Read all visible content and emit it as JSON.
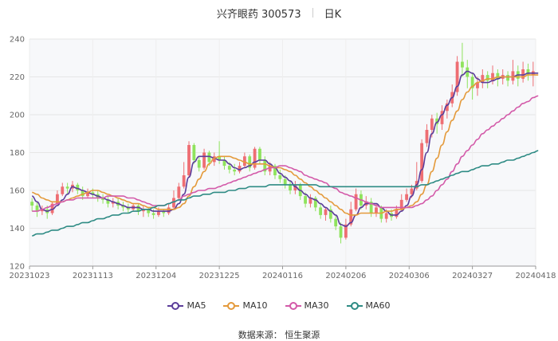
{
  "title": {
    "stock": "兴齐眼药 300573",
    "period": "日K"
  },
  "source": "数据来源：  恒生聚源",
  "colors": {
    "up": "#ee6e73",
    "down": "#8fe35d",
    "ma5": "#5b3d9a",
    "ma10": "#e49a3b",
    "ma30": "#d35aa9",
    "ma60": "#2e8b84"
  },
  "chart_data": {
    "type": "candlestick",
    "ylim": [
      120,
      240
    ],
    "yticks": [
      120,
      140,
      160,
      180,
      200,
      220,
      240
    ],
    "grid": true,
    "legend_position": "bottom",
    "x_labels": [
      "20231023",
      "20231113",
      "20231204",
      "20231225",
      "20240116",
      "20240206",
      "20240306",
      "20240327",
      "20240418"
    ],
    "series_names": [
      "MA5",
      "MA10",
      "MA30",
      "MA60"
    ],
    "ohlc": [
      [
        154,
        152,
        156,
        149
      ],
      [
        152,
        149,
        154,
        146
      ],
      [
        149,
        150,
        152,
        147
      ],
      [
        150,
        148,
        152,
        145
      ],
      [
        148,
        153,
        154,
        147
      ],
      [
        153,
        158,
        160,
        152
      ],
      [
        158,
        162,
        164,
        157
      ],
      [
        162,
        161,
        164,
        158
      ],
      [
        161,
        163,
        165,
        159
      ],
      [
        163,
        160,
        164,
        158
      ],
      [
        160,
        157,
        162,
        155
      ],
      [
        157,
        159,
        161,
        156
      ],
      [
        159,
        158,
        161,
        156
      ],
      [
        158,
        156,
        160,
        154
      ],
      [
        156,
        155,
        158,
        153
      ],
      [
        155,
        153,
        157,
        151
      ],
      [
        153,
        154,
        156,
        151
      ],
      [
        154,
        152,
        156,
        150
      ],
      [
        152,
        151,
        154,
        149
      ],
      [
        151,
        150,
        153,
        148
      ],
      [
        150,
        152,
        153,
        149
      ],
      [
        152,
        149,
        153,
        147
      ],
      [
        149,
        150,
        152,
        146
      ],
      [
        150,
        148,
        151,
        146
      ],
      [
        148,
        147,
        150,
        145
      ],
      [
        147,
        149,
        151,
        146
      ],
      [
        149,
        148,
        150,
        146
      ],
      [
        148,
        151,
        153,
        147
      ],
      [
        151,
        156,
        160,
        150
      ],
      [
        156,
        162,
        164,
        155
      ],
      [
        162,
        168,
        175,
        161
      ],
      [
        168,
        184,
        186,
        167
      ],
      [
        184,
        176,
        185,
        174
      ],
      [
        176,
        172,
        178,
        170
      ],
      [
        172,
        180,
        182,
        171
      ],
      [
        180,
        175,
        181,
        173
      ],
      [
        175,
        178,
        180,
        173
      ],
      [
        178,
        176,
        186,
        174
      ],
      [
        176,
        173,
        178,
        171
      ],
      [
        173,
        171,
        175,
        169
      ],
      [
        171,
        170,
        174,
        168
      ],
      [
        170,
        173,
        175,
        169
      ],
      [
        173,
        178,
        180,
        172
      ],
      [
        178,
        172,
        179,
        170
      ],
      [
        172,
        182,
        183,
        171
      ],
      [
        182,
        176,
        183,
        174
      ],
      [
        176,
        170,
        178,
        168
      ],
      [
        170,
        173,
        175,
        168
      ],
      [
        173,
        168,
        174,
        166
      ],
      [
        168,
        166,
        171,
        164
      ],
      [
        166,
        163,
        168,
        161
      ],
      [
        163,
        160,
        165,
        158
      ],
      [
        160,
        163,
        165,
        158
      ],
      [
        163,
        157,
        164,
        155
      ],
      [
        157,
        153,
        159,
        151
      ],
      [
        153,
        156,
        158,
        151
      ],
      [
        156,
        151,
        157,
        149
      ],
      [
        151,
        147,
        153,
        145
      ],
      [
        147,
        150,
        151,
        144
      ],
      [
        150,
        145,
        152,
        143
      ],
      [
        145,
        141,
        147,
        139
      ],
      [
        141,
        135,
        143,
        132
      ],
      [
        135,
        142,
        145,
        134
      ],
      [
        142,
        150,
        154,
        141
      ],
      [
        150,
        158,
        161,
        149
      ],
      [
        158,
        152,
        160,
        150
      ],
      [
        152,
        154,
        157,
        150
      ],
      [
        154,
        148,
        156,
        146
      ],
      [
        148,
        151,
        153,
        146
      ],
      [
        151,
        145,
        152,
        143
      ],
      [
        145,
        148,
        150,
        143
      ],
      [
        148,
        146,
        150,
        144
      ],
      [
        146,
        150,
        152,
        145
      ],
      [
        150,
        155,
        158,
        149
      ],
      [
        155,
        158,
        161,
        154
      ],
      [
        158,
        161,
        163,
        156
      ],
      [
        161,
        165,
        175,
        160
      ],
      [
        165,
        185,
        187,
        164
      ],
      [
        185,
        192,
        195,
        183
      ],
      [
        192,
        198,
        200,
        188
      ],
      [
        198,
        195,
        201,
        190
      ],
      [
        195,
        202,
        205,
        192
      ],
      [
        202,
        206,
        208,
        198
      ],
      [
        206,
        212,
        216,
        204
      ],
      [
        212,
        228,
        231,
        210
      ],
      [
        228,
        225,
        238,
        220
      ],
      [
        225,
        220,
        229,
        214
      ],
      [
        220,
        214,
        222,
        208
      ],
      [
        214,
        217,
        220,
        210
      ],
      [
        217,
        221,
        224,
        214
      ],
      [
        221,
        218,
        223,
        214
      ],
      [
        218,
        222,
        226,
        216
      ],
      [
        222,
        219,
        224,
        215
      ],
      [
        219,
        221,
        224,
        216
      ],
      [
        221,
        218,
        223,
        215
      ],
      [
        218,
        223,
        229,
        216
      ],
      [
        223,
        219,
        226,
        215
      ],
      [
        219,
        224,
        228,
        217
      ],
      [
        224,
        221,
        227,
        218
      ],
      [
        221,
        223,
        228,
        215
      ]
    ],
    "ma5": [
      157,
      154,
      150,
      149,
      150,
      152,
      155,
      158,
      162,
      161,
      160,
      159,
      158,
      157,
      156,
      155,
      154,
      153,
      152,
      151,
      151,
      151,
      150,
      150,
      149,
      149,
      149,
      149,
      150,
      153,
      158,
      167,
      175,
      178,
      178,
      178,
      177,
      176,
      176,
      174,
      172,
      171,
      172,
      173,
      175,
      176,
      176,
      174,
      172,
      169,
      167,
      165,
      162,
      160,
      158,
      156,
      155,
      153,
      151,
      149,
      147,
      142,
      141,
      143,
      147,
      151,
      153,
      153,
      153,
      151,
      149,
      147,
      147,
      149,
      152,
      157,
      163,
      171,
      180,
      190,
      196,
      200,
      205,
      209,
      215,
      221,
      223,
      222,
      219,
      217,
      217,
      218,
      219,
      220,
      220,
      220,
      221,
      221,
      222,
      222,
      222
    ],
    "ma10": [
      159,
      158,
      156,
      155,
      154,
      154,
      154,
      155,
      156,
      157,
      158,
      159,
      160,
      160,
      159,
      158,
      157,
      156,
      155,
      154,
      153,
      153,
      152,
      151,
      151,
      150,
      150,
      150,
      150,
      151,
      153,
      157,
      162,
      166,
      170,
      174,
      177,
      178,
      178,
      178,
      177,
      176,
      175,
      174,
      174,
      174,
      174,
      173,
      172,
      172,
      171,
      170,
      168,
      166,
      164,
      162,
      160,
      158,
      156,
      154,
      152,
      150,
      148,
      147,
      147,
      148,
      148,
      148,
      148,
      148,
      149,
      149,
      150,
      150,
      151,
      152,
      154,
      158,
      163,
      170,
      177,
      184,
      191,
      197,
      202,
      208,
      212,
      215,
      217,
      218,
      219,
      219,
      220,
      220,
      220,
      220,
      220,
      220,
      221,
      221,
      221
    ],
    "ma30": [
      149,
      149,
      150,
      151,
      152,
      153,
      154,
      155,
      155,
      156,
      156,
      156,
      156,
      156,
      156,
      157,
      157,
      157,
      157,
      156,
      156,
      155,
      154,
      153,
      152,
      152,
      152,
      153,
      154,
      155,
      157,
      158,
      159,
      160,
      160,
      161,
      161,
      162,
      163,
      164,
      165,
      166,
      167,
      168,
      169,
      170,
      171,
      172,
      172,
      173,
      173,
      172,
      171,
      170,
      168,
      167,
      166,
      165,
      164,
      162,
      161,
      159,
      158,
      157,
      156,
      155,
      154,
      153,
      152,
      151,
      151,
      151,
      151,
      151,
      151,
      151,
      152,
      153,
      155,
      157,
      160,
      163,
      166,
      170,
      174,
      178,
      181,
      184,
      187,
      190,
      192,
      194,
      196,
      198,
      200,
      202,
      204,
      206,
      207,
      209,
      210
    ],
    "ma60": [
      136,
      137,
      137,
      138,
      139,
      139,
      140,
      141,
      141,
      142,
      143,
      143,
      144,
      145,
      145,
      146,
      147,
      147,
      148,
      148,
      149,
      149,
      150,
      150,
      151,
      152,
      152,
      153,
      154,
      155,
      155,
      156,
      157,
      157,
      158,
      158,
      159,
      159,
      159,
      160,
      160,
      161,
      161,
      162,
      162,
      162,
      162,
      163,
      163,
      163,
      163,
      163,
      163,
      163,
      163,
      163,
      163,
      162,
      162,
      162,
      162,
      162,
      162,
      162,
      162,
      162,
      162,
      162,
      162,
      162,
      162,
      162,
      162,
      162,
      162,
      162,
      162,
      163,
      163,
      164,
      165,
      166,
      167,
      168,
      169,
      170,
      170,
      171,
      172,
      173,
      173,
      174,
      174,
      175,
      176,
      176,
      177,
      178,
      179,
      180,
      181
    ]
  }
}
